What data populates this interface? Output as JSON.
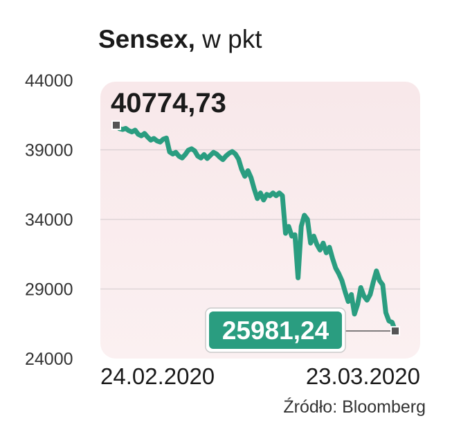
{
  "title": {
    "bold": "Sensex,",
    "unit": "w pkt"
  },
  "source": "Źródło: Bloomberg",
  "chart_data": {
    "type": "line",
    "title": "Sensex, w pkt",
    "x_start_label": "24.02.2020",
    "x_end_label": "23.03.2020",
    "ylim": [
      24000,
      44000
    ],
    "y_ticks": [
      "44000",
      "39000",
      "34000",
      "29000",
      "24000"
    ],
    "y_tick_values": [
      44000,
      39000,
      34000,
      29000,
      24000
    ],
    "first_label": "40774,73",
    "last_label": "25981,24",
    "line_color": "#2a9d80",
    "label_box_color": "#2a9d80",
    "values": [
      40774.73,
      40520,
      40470,
      40540,
      40380,
      40290,
      40420,
      40120,
      40010,
      40180,
      39920,
      39700,
      39820,
      39640,
      39560,
      39770,
      39850,
      38850,
      38700,
      38820,
      38540,
      38420,
      38660,
      38980,
      39080,
      38930,
      38550,
      38420,
      38660,
      38380,
      38600,
      38820,
      38700,
      38480,
      38300,
      38560,
      38750,
      38880,
      38700,
      38340,
      37600,
      37100,
      37500,
      37000,
      36200,
      35500,
      35900,
      35400,
      35800,
      35700,
      35900,
      35700,
      35900,
      35700,
      33000,
      33500,
      32800,
      32900,
      29800,
      33500,
      34300,
      34000,
      32300,
      32800,
      32200,
      31800,
      32300,
      31600,
      32000,
      31200,
      30500,
      30100,
      29600,
      28800,
      28100,
      28600,
      27200,
      27900,
      29100,
      28500,
      28200,
      28600,
      29500,
      30300,
      29600,
      29300,
      27300,
      26700,
      26600,
      25981.24
    ]
  }
}
